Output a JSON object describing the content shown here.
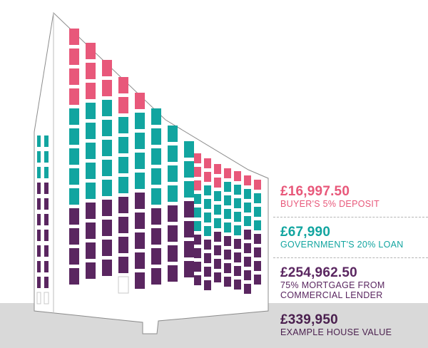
{
  "colors": {
    "deposit": "#e8587a",
    "loan": "#12a5a0",
    "mortgage": "#5a2660",
    "ground": "#d9d9d9",
    "outline": "#8c8c8c"
  },
  "segments": [
    {
      "key": "deposit",
      "amount": "£16,997.50",
      "lines": [
        "BUYER'S 5% DEPOSIT"
      ],
      "share": 0.05
    },
    {
      "key": "loan",
      "amount": "£67,990",
      "lines": [
        "GOVERNMENT'S 20% LOAN"
      ],
      "share": 0.2
    },
    {
      "key": "mortgage",
      "amount": "£254,962.50",
      "lines": [
        "75% MORTGAGE FROM",
        "COMMERCIAL LENDER"
      ],
      "share": 0.75
    }
  ],
  "total": {
    "amount": "£339,950",
    "label": "EXAMPLE HOUSE VALUE"
  }
}
